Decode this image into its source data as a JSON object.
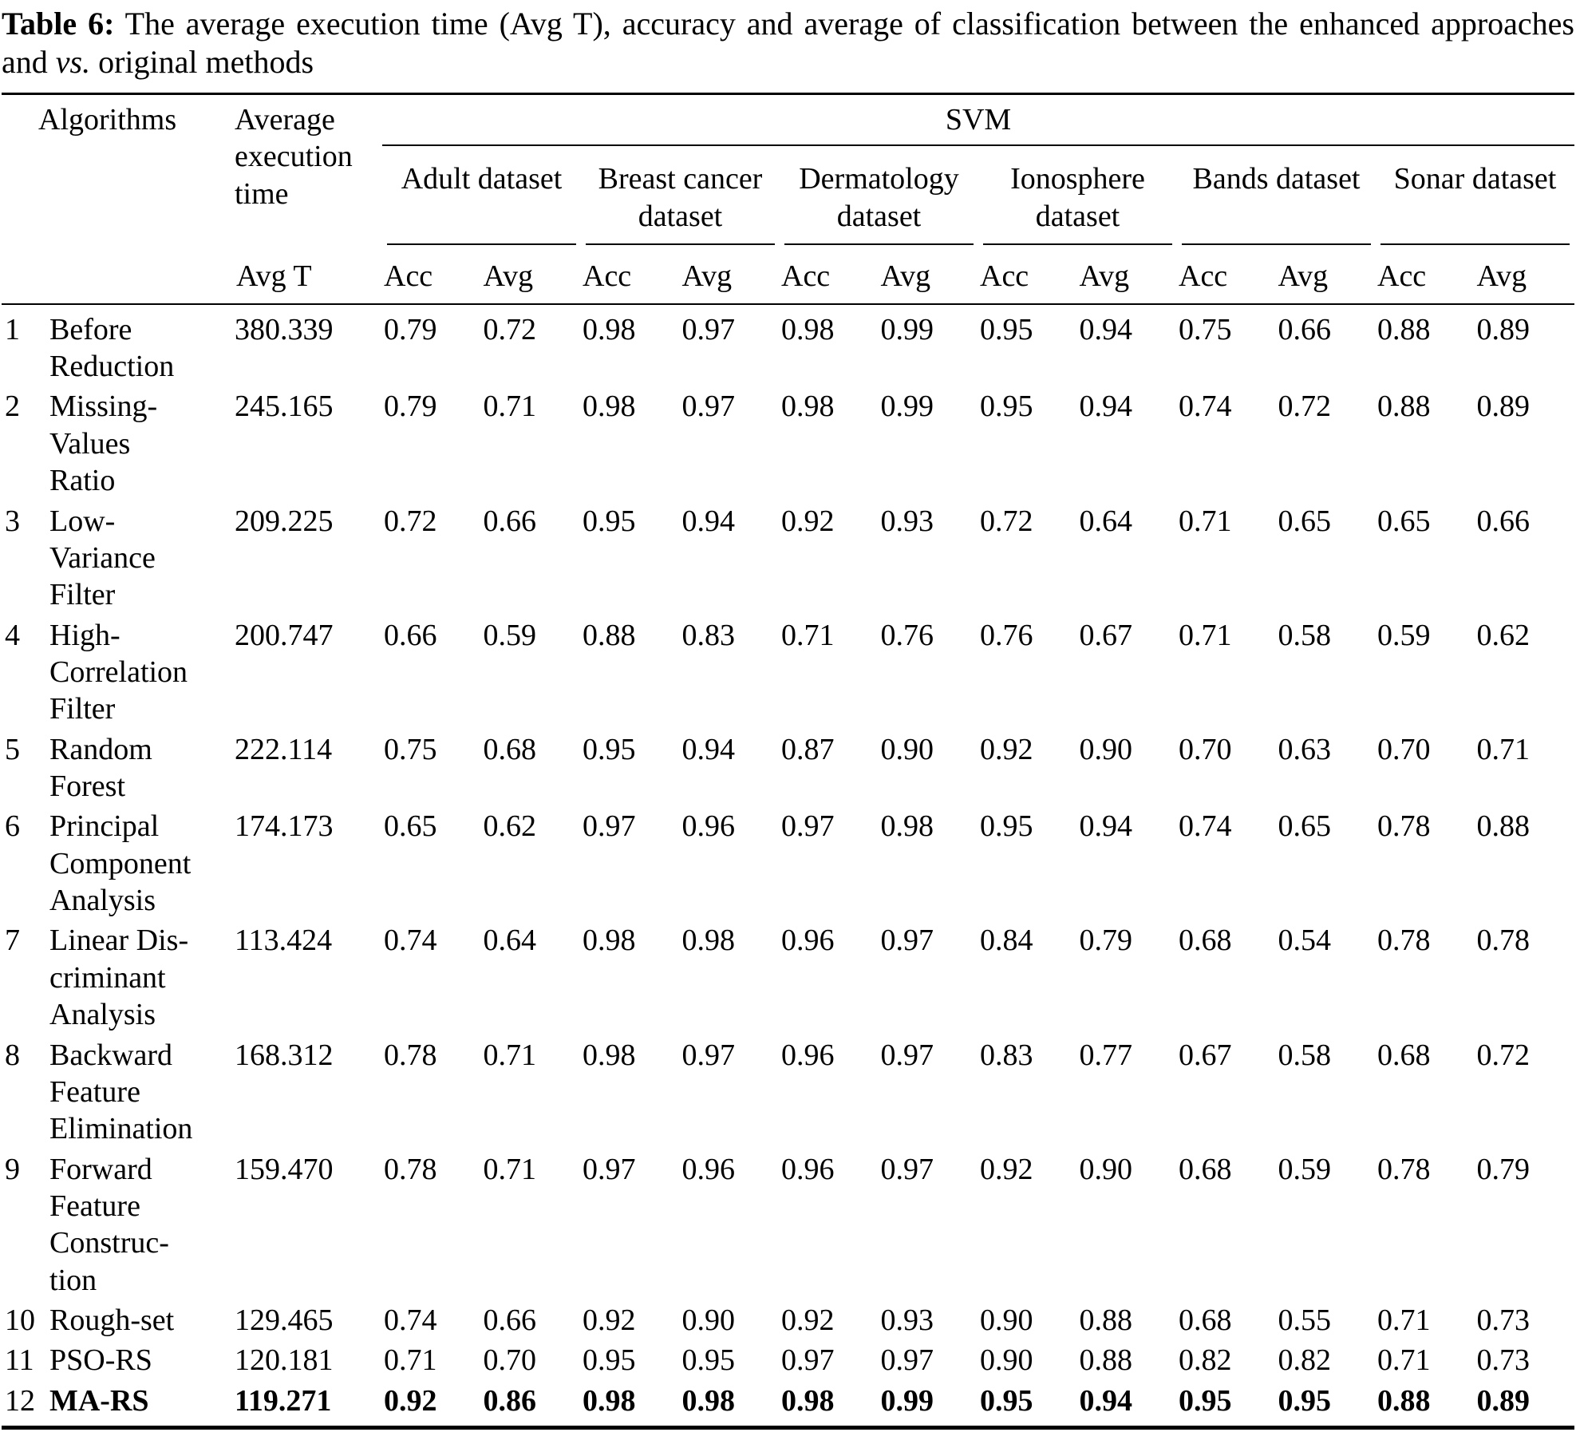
{
  "caption": {
    "label": "Table 6:",
    "body": " The average execution time (Avg T), accuracy and average of classification between the enhanced approaches and ",
    "emphasis": "vs.",
    "tail": " original methods"
  },
  "header": {
    "algorithms": "Algorithms",
    "avg_exec_time": "Average execution time",
    "group": "SVM",
    "avg_t": "Avg T",
    "datasets": [
      "Adult dataset",
      "Breast cancer dataset",
      "Dermatology dataset",
      "Ionosphere dataset",
      "Bands dataset",
      "Sonar dataset"
    ],
    "metric_acc": "Acc",
    "metric_avg": "Avg"
  },
  "rows": [
    {
      "num": "1",
      "name": "Before\nReduction",
      "avg_t": "380.339",
      "values": [
        "0.79",
        "0.72",
        "0.98",
        "0.97",
        "0.98",
        "0.99",
        "0.95",
        "0.94",
        "0.75",
        "0.66",
        "0.88",
        "0.89"
      ],
      "bold": false
    },
    {
      "num": "2",
      "name": "Missing-\nValues\nRatio",
      "avg_t": "245.165",
      "values": [
        "0.79",
        "0.71",
        "0.98",
        "0.97",
        "0.98",
        "0.99",
        "0.95",
        "0.94",
        "0.74",
        "0.72",
        "0.88",
        "0.89"
      ],
      "bold": false
    },
    {
      "num": "3",
      "name": "Low-\nVariance\nFilter",
      "avg_t": "209.225",
      "values": [
        "0.72",
        "0.66",
        "0.95",
        "0.94",
        "0.92",
        "0.93",
        "0.72",
        "0.64",
        "0.71",
        "0.65",
        "0.65",
        "0.66"
      ],
      "bold": false
    },
    {
      "num": "4",
      "name": "High-\nCorrelation\nFilter",
      "avg_t": "200.747",
      "values": [
        "0.66",
        "0.59",
        "0.88",
        "0.83",
        "0.71",
        "0.76",
        "0.76",
        "0.67",
        "0.71",
        "0.58",
        "0.59",
        "0.62"
      ],
      "bold": false
    },
    {
      "num": "5",
      "name": "Random\nForest",
      "avg_t": "222.114",
      "values": [
        "0.75",
        "0.68",
        "0.95",
        "0.94",
        "0.87",
        "0.90",
        "0.92",
        "0.90",
        "0.70",
        "0.63",
        "0.70",
        "0.71"
      ],
      "bold": false
    },
    {
      "num": "6",
      "name": "Principal\nComponent\nAnalysis",
      "avg_t": "174.173",
      "values": [
        "0.65",
        "0.62",
        "0.97",
        "0.96",
        "0.97",
        "0.98",
        "0.95",
        "0.94",
        "0.74",
        "0.65",
        "0.78",
        "0.88"
      ],
      "bold": false
    },
    {
      "num": "7",
      "name": "Linear Dis-\ncriminant\nAnalysis",
      "avg_t": "113.424",
      "values": [
        "0.74",
        "0.64",
        "0.98",
        "0.98",
        "0.96",
        "0.97",
        "0.84",
        "0.79",
        "0.68",
        "0.54",
        "0.78",
        "0.78"
      ],
      "bold": false
    },
    {
      "num": "8",
      "name": "Backward\nFeature\nElimination",
      "avg_t": "168.312",
      "values": [
        "0.78",
        "0.71",
        "0.98",
        "0.97",
        "0.96",
        "0.97",
        "0.83",
        "0.77",
        "0.67",
        "0.58",
        "0.68",
        "0.72"
      ],
      "bold": false
    },
    {
      "num": "9",
      "name": "Forward\nFeature\nConstruc-\ntion",
      "avg_t": "159.470",
      "values": [
        "0.78",
        "0.71",
        "0.97",
        "0.96",
        "0.96",
        "0.97",
        "0.92",
        "0.90",
        "0.68",
        "0.59",
        "0.78",
        "0.79"
      ],
      "bold": false
    },
    {
      "num": "10",
      "name": "Rough-set",
      "avg_t": "129.465",
      "values": [
        "0.74",
        "0.66",
        "0.92",
        "0.90",
        "0.92",
        "0.93",
        "0.90",
        "0.88",
        "0.68",
        "0.55",
        "0.71",
        "0.73"
      ],
      "bold": false
    },
    {
      "num": "11",
      "name": "PSO-RS",
      "avg_t": "120.181",
      "values": [
        "0.71",
        "0.70",
        "0.95",
        "0.95",
        "0.97",
        "0.97",
        "0.90",
        "0.88",
        "0.82",
        "0.82",
        "0.71",
        "0.73"
      ],
      "bold": false
    },
    {
      "num": "12",
      "name": "MA-RS",
      "avg_t": "119.271",
      "values": [
        "0.92",
        "0.86",
        "0.98",
        "0.98",
        "0.98",
        "0.99",
        "0.95",
        "0.94",
        "0.95",
        "0.95",
        "0.88",
        "0.89"
      ],
      "bold": true
    }
  ]
}
